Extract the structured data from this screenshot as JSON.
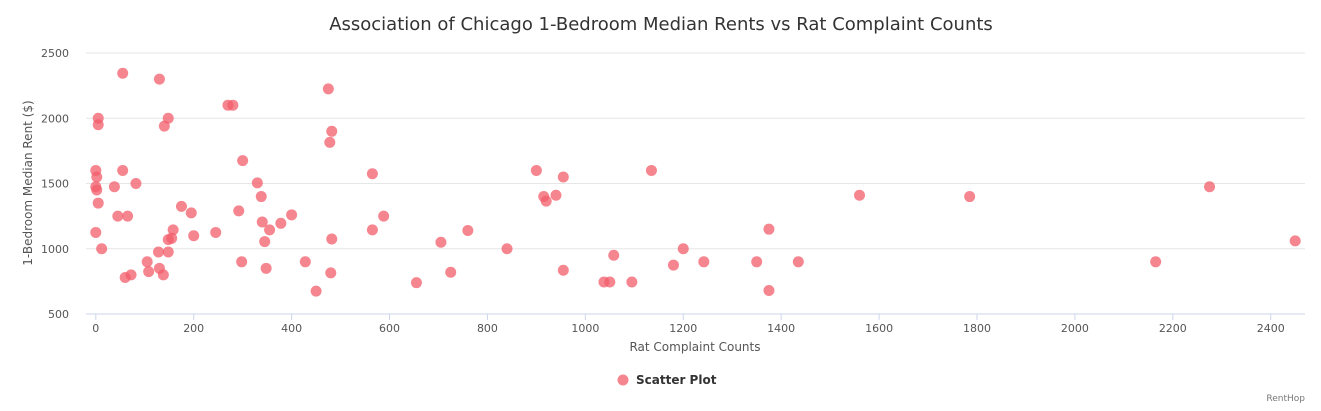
{
  "chart_data": {
    "type": "scatter",
    "title": "Association of Chicago 1-Bedroom Median Rents vs Rat Complaint Counts",
    "xlabel": "Rat Complaint Counts",
    "ylabel": "1-Bedroom Median Rent ($)",
    "xlim": [
      -20,
      2470
    ],
    "ylim": [
      500,
      2500
    ],
    "xticks": [
      0,
      200,
      400,
      600,
      800,
      1000,
      1200,
      1400,
      1600,
      1800,
      2000,
      2200,
      2400
    ],
    "yticks": [
      500,
      1000,
      1500,
      2000,
      2500
    ],
    "grid": true,
    "legend_position": "bottom-center",
    "credit": "RentHop",
    "color": "#f15c69",
    "series": [
      {
        "name": "Scatter Plot",
        "points": [
          [
            55,
            2345
          ],
          [
            130,
            2300
          ],
          [
            270,
            2100
          ],
          [
            280,
            2100
          ],
          [
            475,
            2225
          ],
          [
            5,
            2000
          ],
          [
            5,
            1950
          ],
          [
            148,
            2000
          ],
          [
            140,
            1940
          ],
          [
            482,
            1900
          ],
          [
            478,
            1815
          ],
          [
            300,
            1675
          ],
          [
            0,
            1600
          ],
          [
            2,
            1550
          ],
          [
            55,
            1600
          ],
          [
            0,
            1475
          ],
          [
            2,
            1450
          ],
          [
            38,
            1475
          ],
          [
            82,
            1500
          ],
          [
            565,
            1575
          ],
          [
            900,
            1600
          ],
          [
            955,
            1550
          ],
          [
            1135,
            1600
          ],
          [
            330,
            1505
          ],
          [
            5,
            1350
          ],
          [
            915,
            1400
          ],
          [
            940,
            1410
          ],
          [
            920,
            1365
          ],
          [
            338,
            1400
          ],
          [
            175,
            1325
          ],
          [
            195,
            1275
          ],
          [
            292,
            1290
          ],
          [
            1560,
            1410
          ],
          [
            1785,
            1400
          ],
          [
            2275,
            1475
          ],
          [
            45,
            1250
          ],
          [
            65,
            1250
          ],
          [
            400,
            1260
          ],
          [
            588,
            1250
          ],
          [
            340,
            1205
          ],
          [
            378,
            1195
          ],
          [
            355,
            1145
          ],
          [
            565,
            1145
          ],
          [
            0,
            1125
          ],
          [
            245,
            1125
          ],
          [
            760,
            1140
          ],
          [
            158,
            1145
          ],
          [
            200,
            1100
          ],
          [
            482,
            1075
          ],
          [
            345,
            1055
          ],
          [
            705,
            1050
          ],
          [
            2450,
            1060
          ],
          [
            155,
            1080
          ],
          [
            148,
            1070
          ],
          [
            12,
            1000
          ],
          [
            128,
            975
          ],
          [
            148,
            975
          ],
          [
            840,
            1000
          ],
          [
            1200,
            1000
          ],
          [
            1375,
            1150
          ],
          [
            1058,
            950
          ],
          [
            105,
            900
          ],
          [
            298,
            900
          ],
          [
            428,
            900
          ],
          [
            1242,
            900
          ],
          [
            1350,
            900
          ],
          [
            1435,
            900
          ],
          [
            2165,
            900
          ],
          [
            130,
            850
          ],
          [
            108,
            825
          ],
          [
            138,
            800
          ],
          [
            72,
            800
          ],
          [
            348,
            850
          ],
          [
            480,
            815
          ],
          [
            725,
            820
          ],
          [
            955,
            835
          ],
          [
            1180,
            875
          ],
          [
            60,
            780
          ],
          [
            655,
            740
          ],
          [
            1038,
            745
          ],
          [
            1050,
            745
          ],
          [
            1095,
            745
          ],
          [
            450,
            675
          ],
          [
            1375,
            680
          ]
        ]
      }
    ]
  }
}
